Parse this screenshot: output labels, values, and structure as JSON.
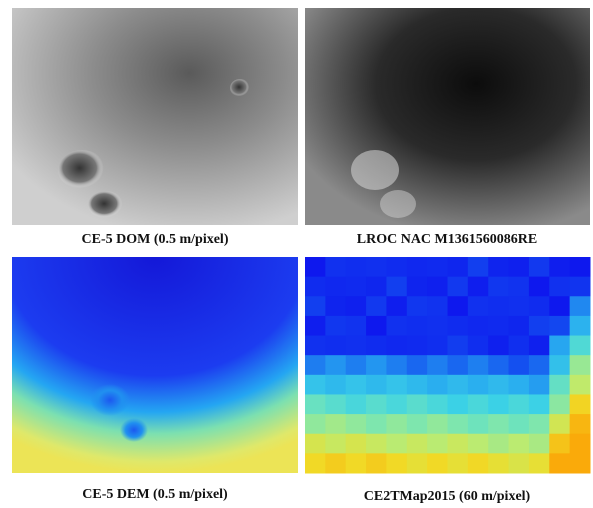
{
  "panels": [
    {
      "caption": "CE-5 DOM (0.5 m/pixel)"
    },
    {
      "caption": "LROC NAC M1361560086RE"
    },
    {
      "caption": "CE-5 DEM (0.5 m/pixel)"
    },
    {
      "caption": "CE2TMap2015 (60 m/pixel)"
    }
  ]
}
